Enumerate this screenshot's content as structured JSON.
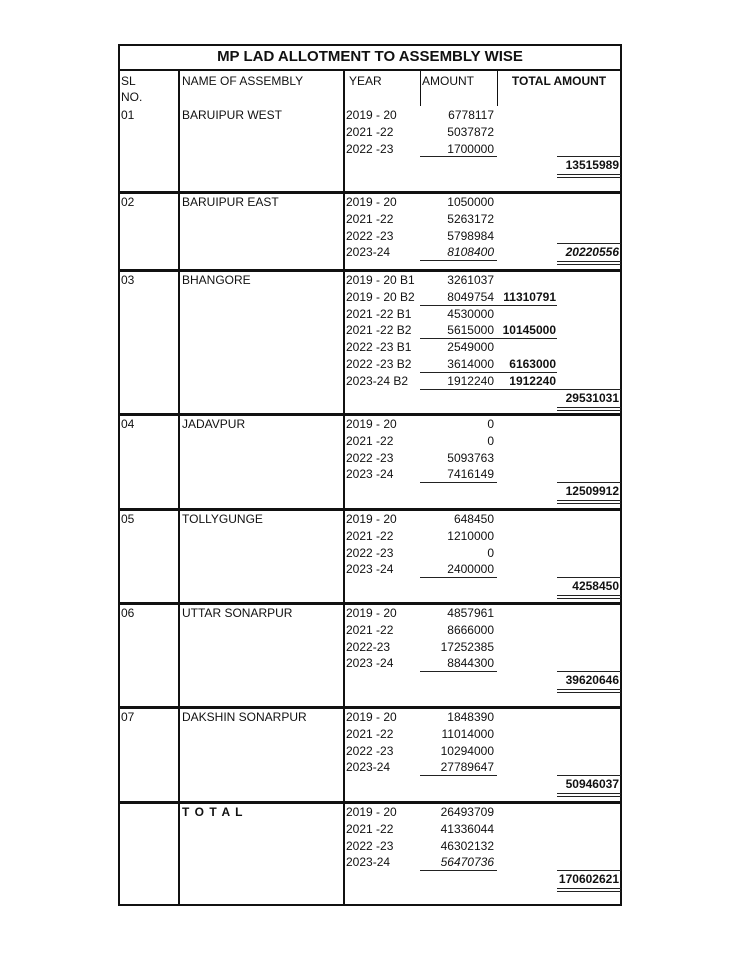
{
  "title": "MP LAD ALLOTMENT TO ASSEMBLY WISE",
  "headers": {
    "sl_no": "SL\nNO.",
    "name": "NAME  OF ASSEMBLY",
    "year": "YEAR",
    "amount": "AMOUNT",
    "total_amount": "TOTAL AMOUNT"
  },
  "sections": [
    {
      "sl": "01",
      "name": "BARUIPUR WEST",
      "total": "13515989",
      "lines": [
        {
          "year": "2019 - 20",
          "amount": "6778117"
        },
        {
          "year": "2021 -22",
          "amount": "5037872"
        },
        {
          "year": "2022 -23",
          "amount": "1700000"
        }
      ]
    },
    {
      "sl": "02",
      "name": "BARUIPUR EAST",
      "total": "20220556",
      "total_italic": true,
      "lines": [
        {
          "year": "2019 - 20",
          "amount": "1050000"
        },
        {
          "year": "2021 -22",
          "amount": "5263172"
        },
        {
          "year": "2022 -23",
          "amount": "5798984"
        },
        {
          "year": "2023-24",
          "amount": "8108400",
          "italic": true
        }
      ]
    },
    {
      "sl": "03",
      "name": "BHANGORE",
      "total": "29531031",
      "lines": [
        {
          "year": "2019 - 20 B1",
          "amount": "3261037"
        },
        {
          "year": "2019 - 20 B2",
          "amount": "8049754",
          "subtotal": "11310791"
        },
        {
          "year": "2021 -22 B1",
          "amount": "4530000"
        },
        {
          "year": "2021 -22 B2",
          "amount": "5615000",
          "subtotal": "10145000"
        },
        {
          "year": "2022 -23 B1",
          "amount": "2549000"
        },
        {
          "year": "2022 -23 B2",
          "amount": "3614000",
          "subtotal": "6163000"
        },
        {
          "year": "2023-24 B2",
          "amount": "1912240",
          "subtotal": "1912240"
        }
      ]
    },
    {
      "sl": "04",
      "name": "JADAVPUR",
      "total": "12509912",
      "lines": [
        {
          "year": "2019 - 20",
          "amount": "0"
        },
        {
          "year": "2021 -22",
          "amount": "0"
        },
        {
          "year": "2022 -23",
          "amount": "5093763"
        },
        {
          "year": "2023 -24",
          "amount": "7416149"
        }
      ]
    },
    {
      "sl": "05",
      "name": "TOLLYGUNGE",
      "total": "4258450",
      "lines": [
        {
          "year": "2019 - 20",
          "amount": "648450"
        },
        {
          "year": "2021 -22",
          "amount": "1210000"
        },
        {
          "year": "2022 -23",
          "amount": "0"
        },
        {
          "year": "2023 -24",
          "amount": "2400000"
        }
      ]
    },
    {
      "sl": "06",
      "name": "UTTAR SONARPUR",
      "total": "39620646",
      "lines": [
        {
          "year": "2019 - 20",
          "amount": "4857961"
        },
        {
          "year": "2021 -22",
          "amount": "8666000"
        },
        {
          "year": "2022-23",
          "amount": "17252385"
        },
        {
          "year": "2023 -24",
          "amount": "8844300"
        }
      ]
    },
    {
      "sl": "07",
      "name": "DAKSHIN SONARPUR",
      "total": "50946037",
      "lines": [
        {
          "year": "2019 - 20",
          "amount": "1848390"
        },
        {
          "year": "2021 -22",
          "amount": "11014000"
        },
        {
          "year": "2022 -23",
          "amount": "10294000"
        },
        {
          "year": "2023-24",
          "amount": "27789647"
        }
      ]
    },
    {
      "sl": "",
      "name": "T O T A L",
      "name_bold": true,
      "total": "170602621",
      "lines": [
        {
          "year": "2019 - 20",
          "amount": "26493709"
        },
        {
          "year": "2021 -22",
          "amount": "41336044"
        },
        {
          "year": "2022 -23",
          "amount": "46302132"
        },
        {
          "year": "2023-24",
          "amount": "56470736",
          "italic": true
        }
      ]
    }
  ]
}
